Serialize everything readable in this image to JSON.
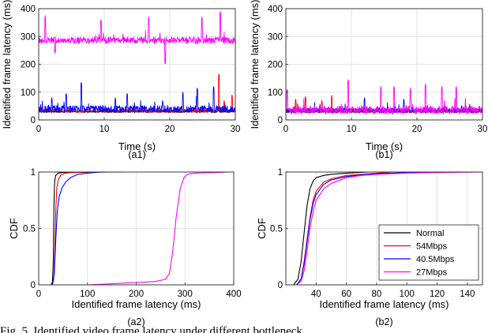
{
  "chart_data": [
    {
      "panel": "a1",
      "type": "line",
      "caption": "(a1)",
      "xlabel": "Time (s)",
      "ylabel": "Identified frame latency (ms)",
      "xlim": [
        0,
        30
      ],
      "ylim": [
        0,
        400
      ],
      "xticks": [
        0,
        10,
        20,
        30
      ],
      "yticks": [
        0,
        100,
        200,
        300,
        400
      ],
      "grid": true,
      "series": [
        {
          "color": "#000000",
          "base": 30,
          "noise": 4,
          "spikes": []
        },
        {
          "color": "#ff0000",
          "base": 32,
          "noise": 6,
          "spikes": [
            [
              27.5,
              165
            ],
            [
              29.5,
              90
            ],
            [
              28.3,
              70
            ]
          ]
        },
        {
          "color": "#0000ff",
          "base": 38,
          "noise": 12,
          "spikes": [
            [
              6.5,
              135
            ],
            [
              4.2,
              95
            ],
            [
              13.5,
              95
            ],
            [
              24.2,
              115
            ],
            [
              26.7,
              120
            ],
            [
              18.9,
              70
            ],
            [
              2.0,
              80
            ],
            [
              11.7,
              80
            ],
            [
              22.0,
              100
            ]
          ]
        },
        {
          "color": "#ff00ff",
          "base": 285,
          "noise": 12,
          "spikes": [
            [
              1.0,
              375
            ],
            [
              9.5,
              360
            ],
            [
              16.8,
              370
            ],
            [
              24.9,
              370
            ],
            [
              27.7,
              390
            ],
            [
              19.3,
              210
            ],
            [
              2.5,
              250
            ]
          ]
        }
      ]
    },
    {
      "panel": "b1",
      "type": "line",
      "caption": "(b1)",
      "xlabel": "Time (s)",
      "ylabel": "Identified frame latency (ms)",
      "xlim": [
        0,
        30
      ],
      "ylim": [
        0,
        400
      ],
      "xticks": [
        0,
        10,
        20,
        30
      ],
      "yticks": [
        0,
        100,
        200,
        300,
        400
      ],
      "grid": true,
      "series": [
        {
          "color": "#000000",
          "base": 30,
          "noise": 4,
          "spikes": []
        },
        {
          "color": "#ff0000",
          "base": 33,
          "noise": 8,
          "spikes": [
            [
              1.5,
              75
            ],
            [
              3.0,
              85
            ],
            [
              5.5,
              70
            ],
            [
              7.0,
              88
            ]
          ]
        },
        {
          "color": "#0000ff",
          "base": 33,
          "noise": 8,
          "spikes": [
            [
              12.0,
              80
            ],
            [
              18.0,
              75
            ]
          ]
        },
        {
          "color": "#ff00ff",
          "base": 34,
          "noise": 14,
          "spikes": [
            [
              0.2,
              110
            ],
            [
              9.5,
              145
            ],
            [
              14.5,
              120
            ],
            [
              16.5,
              120
            ],
            [
              19.0,
              115
            ],
            [
              21.3,
              130
            ],
            [
              23.8,
              120
            ],
            [
              26.0,
              120
            ]
          ]
        }
      ]
    },
    {
      "panel": "a2",
      "type": "line",
      "caption": "(a2)",
      "xlabel": "Identified frame latency (ms)",
      "ylabel": "CDF",
      "xlim": [
        0,
        400
      ],
      "ylim": [
        0,
        1
      ],
      "xticks": [
        0,
        100,
        200,
        300,
        400
      ],
      "yticks": [
        0,
        0.5,
        1
      ],
      "grid": true,
      "series": [
        {
          "color": "#000000",
          "x": [
            25,
            28,
            30,
            31,
            32,
            33,
            35,
            40,
            50,
            60,
            80
          ],
          "y": [
            0,
            0.02,
            0.2,
            0.6,
            0.85,
            0.93,
            0.97,
            0.99,
            0.995,
            0.998,
            1
          ]
        },
        {
          "color": "#ff0000",
          "x": [
            28,
            31,
            33,
            35,
            37,
            40,
            45,
            55,
            70,
            100,
            130,
            180
          ],
          "y": [
            0,
            0.05,
            0.3,
            0.65,
            0.85,
            0.93,
            0.97,
            0.99,
            0.995,
            0.998,
            0.999,
            1
          ]
        },
        {
          "color": "#0000ff",
          "x": [
            28,
            32,
            35,
            38,
            42,
            48,
            55,
            65,
            80,
            100,
            120,
            140
          ],
          "y": [
            0,
            0.1,
            0.4,
            0.65,
            0.78,
            0.86,
            0.91,
            0.95,
            0.98,
            0.99,
            0.998,
            1
          ]
        },
        {
          "color": "#ff00ff",
          "x": [
            100,
            150,
            200,
            240,
            260,
            268,
            275,
            282,
            290,
            298,
            305,
            320,
            360,
            390
          ],
          "y": [
            0,
            0.01,
            0.02,
            0.03,
            0.05,
            0.1,
            0.3,
            0.6,
            0.85,
            0.95,
            0.98,
            0.99,
            0.995,
            1
          ]
        }
      ]
    },
    {
      "panel": "b2",
      "type": "line",
      "caption": "(b2)",
      "xlabel": "Identified frame latency (ms)",
      "ylabel": "CDF",
      "xlim": [
        20,
        150
      ],
      "ylim": [
        0,
        1
      ],
      "xticks": [
        40,
        60,
        80,
        100,
        120,
        140
      ],
      "yticks": [
        0,
        0.5,
        1
      ],
      "grid": true,
      "legend": {
        "placement": "bottom-right",
        "entries": [
          {
            "label": "Normal",
            "color": "#000000"
          },
          {
            "label": "54Mbps",
            "color": "#ff0000"
          },
          {
            "label": "40.5Mbps",
            "color": "#0000ff"
          },
          {
            "label": "27Mbps",
            "color": "#ff00ff"
          }
        ]
      },
      "series": [
        {
          "name": "Normal",
          "color": "#000000",
          "x": [
            25,
            28,
            30,
            32,
            34,
            36,
            38,
            40,
            45,
            50,
            60,
            75
          ],
          "y": [
            0,
            0.05,
            0.2,
            0.45,
            0.7,
            0.85,
            0.92,
            0.95,
            0.97,
            0.98,
            0.99,
            1
          ]
        },
        {
          "name": "54Mbps",
          "color": "#ff0000",
          "x": [
            27,
            30,
            32,
            34,
            36,
            38,
            40,
            45,
            50,
            60,
            70,
            80,
            90
          ],
          "y": [
            0,
            0.05,
            0.2,
            0.4,
            0.6,
            0.75,
            0.83,
            0.91,
            0.94,
            0.97,
            0.98,
            0.99,
            1
          ]
        },
        {
          "name": "40.5Mbps",
          "color": "#0000ff",
          "x": [
            27,
            30,
            32,
            34,
            36,
            38,
            40,
            45,
            50,
            60,
            70,
            80,
            100,
            120
          ],
          "y": [
            0,
            0.05,
            0.18,
            0.38,
            0.58,
            0.72,
            0.8,
            0.89,
            0.93,
            0.96,
            0.975,
            0.985,
            0.995,
            1
          ]
        },
        {
          "name": "27Mbps",
          "color": "#ff00ff",
          "x": [
            27,
            30,
            32,
            34,
            36,
            38,
            40,
            45,
            50,
            60,
            70,
            80,
            100,
            120,
            150
          ],
          "y": [
            0,
            0.03,
            0.12,
            0.3,
            0.5,
            0.65,
            0.75,
            0.85,
            0.9,
            0.95,
            0.97,
            0.98,
            0.99,
            0.995,
            1
          ]
        }
      ]
    }
  ],
  "bottom_text": "Fig. 5. Identified video frame latency under different bottleneck..."
}
